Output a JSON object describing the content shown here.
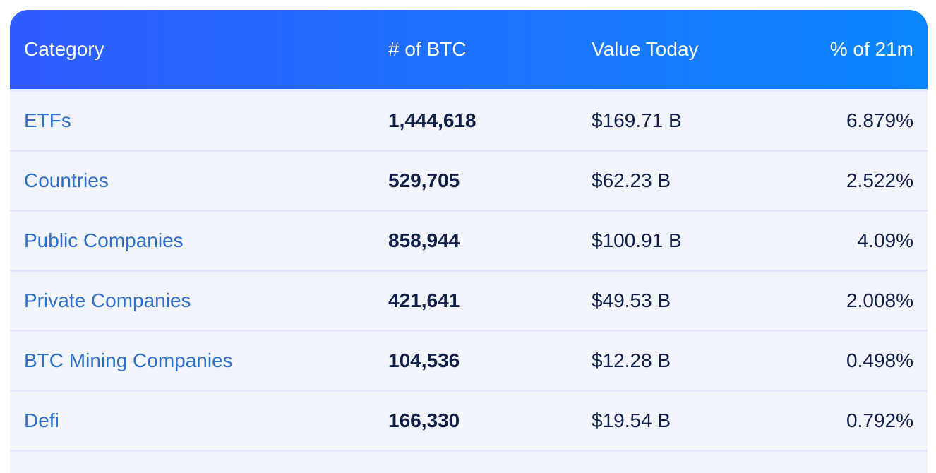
{
  "table": {
    "headers": {
      "category": "Category",
      "btc": "# of BTC",
      "value": "Value Today",
      "pct": "% of 21m"
    },
    "rows": [
      {
        "category": "ETFs",
        "btc": "1,444,618",
        "value": "$169.71 B",
        "pct": "6.879%"
      },
      {
        "category": "Countries",
        "btc": "529,705",
        "value": "$62.23 B",
        "pct": "2.522%"
      },
      {
        "category": "Public Companies",
        "btc": "858,944",
        "value": "$100.91 B",
        "pct": "4.09%"
      },
      {
        "category": "Private Companies",
        "btc": "421,641",
        "value": "$49.53 B",
        "pct": "2.008%"
      },
      {
        "category": "BTC Mining Companies",
        "btc": "104,536",
        "value": "$12.28 B",
        "pct": "0.498%"
      },
      {
        "category": "Defi",
        "btc": "166,330",
        "value": "$19.54 B",
        "pct": "0.792%"
      }
    ]
  },
  "colors": {
    "header_gradient_start": "#2f5cff",
    "header_gradient_end": "#0a86ff",
    "row_background": "#f2f5fc",
    "category_link": "#2f6fc7",
    "text_dark": "#0f1f47",
    "row_divider": "#e2e7ff"
  }
}
